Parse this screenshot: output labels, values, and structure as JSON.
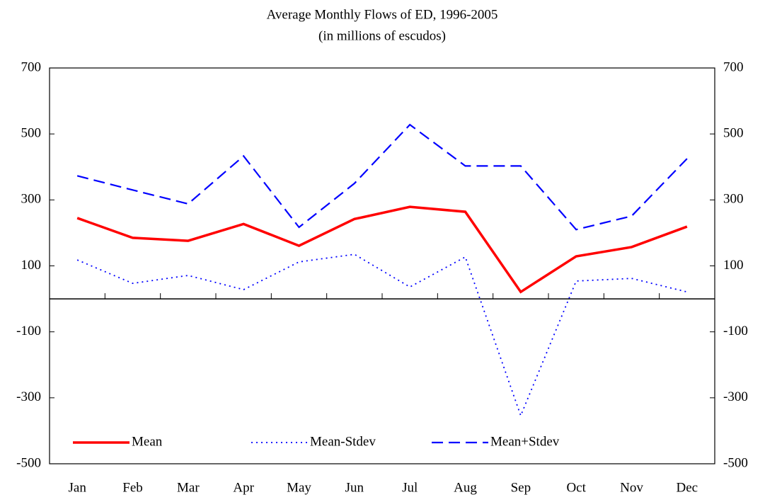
{
  "chart_data": {
    "type": "line",
    "title": "Average Monthly Flows of ED, 1996-2005",
    "subtitle": "(in millions of escudos)",
    "categories": [
      "Jan",
      "Feb",
      "Mar",
      "Apr",
      "May",
      "Jun",
      "Jul",
      "Aug",
      "Sep",
      "Oct",
      "Nov",
      "Dec"
    ],
    "series": [
      {
        "name": "Mean",
        "color": "#ff0000",
        "style": "solid",
        "values": [
          245,
          185,
          176,
          227,
          161,
          242,
          279,
          264,
          21,
          129,
          157,
          219
        ]
      },
      {
        "name": "Mean-Stdev",
        "color": "#0000ff",
        "style": "dotted",
        "values": [
          118,
          47,
          71,
          28,
          112,
          135,
          36,
          127,
          -354,
          54,
          62,
          21
        ]
      },
      {
        "name": "Mean+Stdev",
        "color": "#0000ff",
        "style": "dashed",
        "values": [
          373,
          330,
          288,
          433,
          217,
          350,
          528,
          403,
          403,
          210,
          251,
          425
        ]
      }
    ],
    "ylim": [
      -500,
      700
    ],
    "yticks": [
      -500,
      -300,
      -100,
      100,
      300,
      500,
      700
    ],
    "y2lim": [
      -500,
      700
    ],
    "y2ticks": [
      -500,
      -300,
      -100,
      100,
      300,
      500,
      700
    ],
    "grid": false,
    "legend": "bottom-left"
  }
}
